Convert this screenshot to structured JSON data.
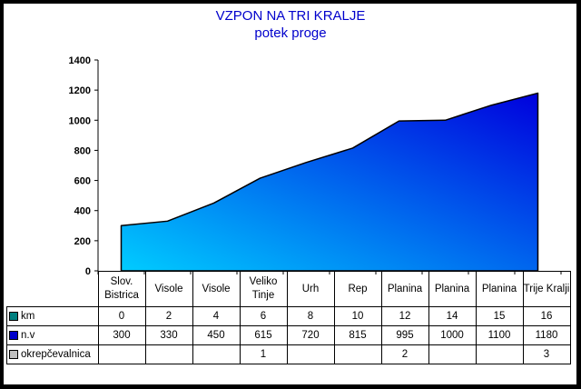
{
  "chart_data": {
    "type": "area",
    "title": "VZPON NA TRI KRALJE",
    "subtitle": "potek proge",
    "categories": [
      "Slov. Bistrica",
      "Visole",
      "Visole",
      "Veliko Tinje",
      "Urh",
      "Rep",
      "Planina",
      "Planina",
      "Planina",
      "Trije Kralji"
    ],
    "ylim": [
      0,
      1400
    ],
    "yticks": [
      0,
      200,
      400,
      600,
      800,
      1000,
      1200,
      1400
    ],
    "grid": false,
    "legend": "table",
    "series": [
      {
        "name": "km",
        "values": [
          0,
          2,
          4,
          6,
          8,
          10,
          12,
          14,
          15,
          16
        ],
        "color": "#008080"
      },
      {
        "name": "n.v",
        "values": [
          300,
          330,
          450,
          615,
          720,
          815,
          995,
          1000,
          1100,
          1180
        ],
        "color": "#0000cc"
      },
      {
        "name": "okrepčevalnica",
        "values": [
          "",
          "",
          "",
          "1",
          "",
          "",
          "2",
          "",
          "",
          "3"
        ],
        "color": "#c0c0c0"
      }
    ],
    "fill_gradient": [
      "#00ccff",
      "#0000dd"
    ]
  }
}
